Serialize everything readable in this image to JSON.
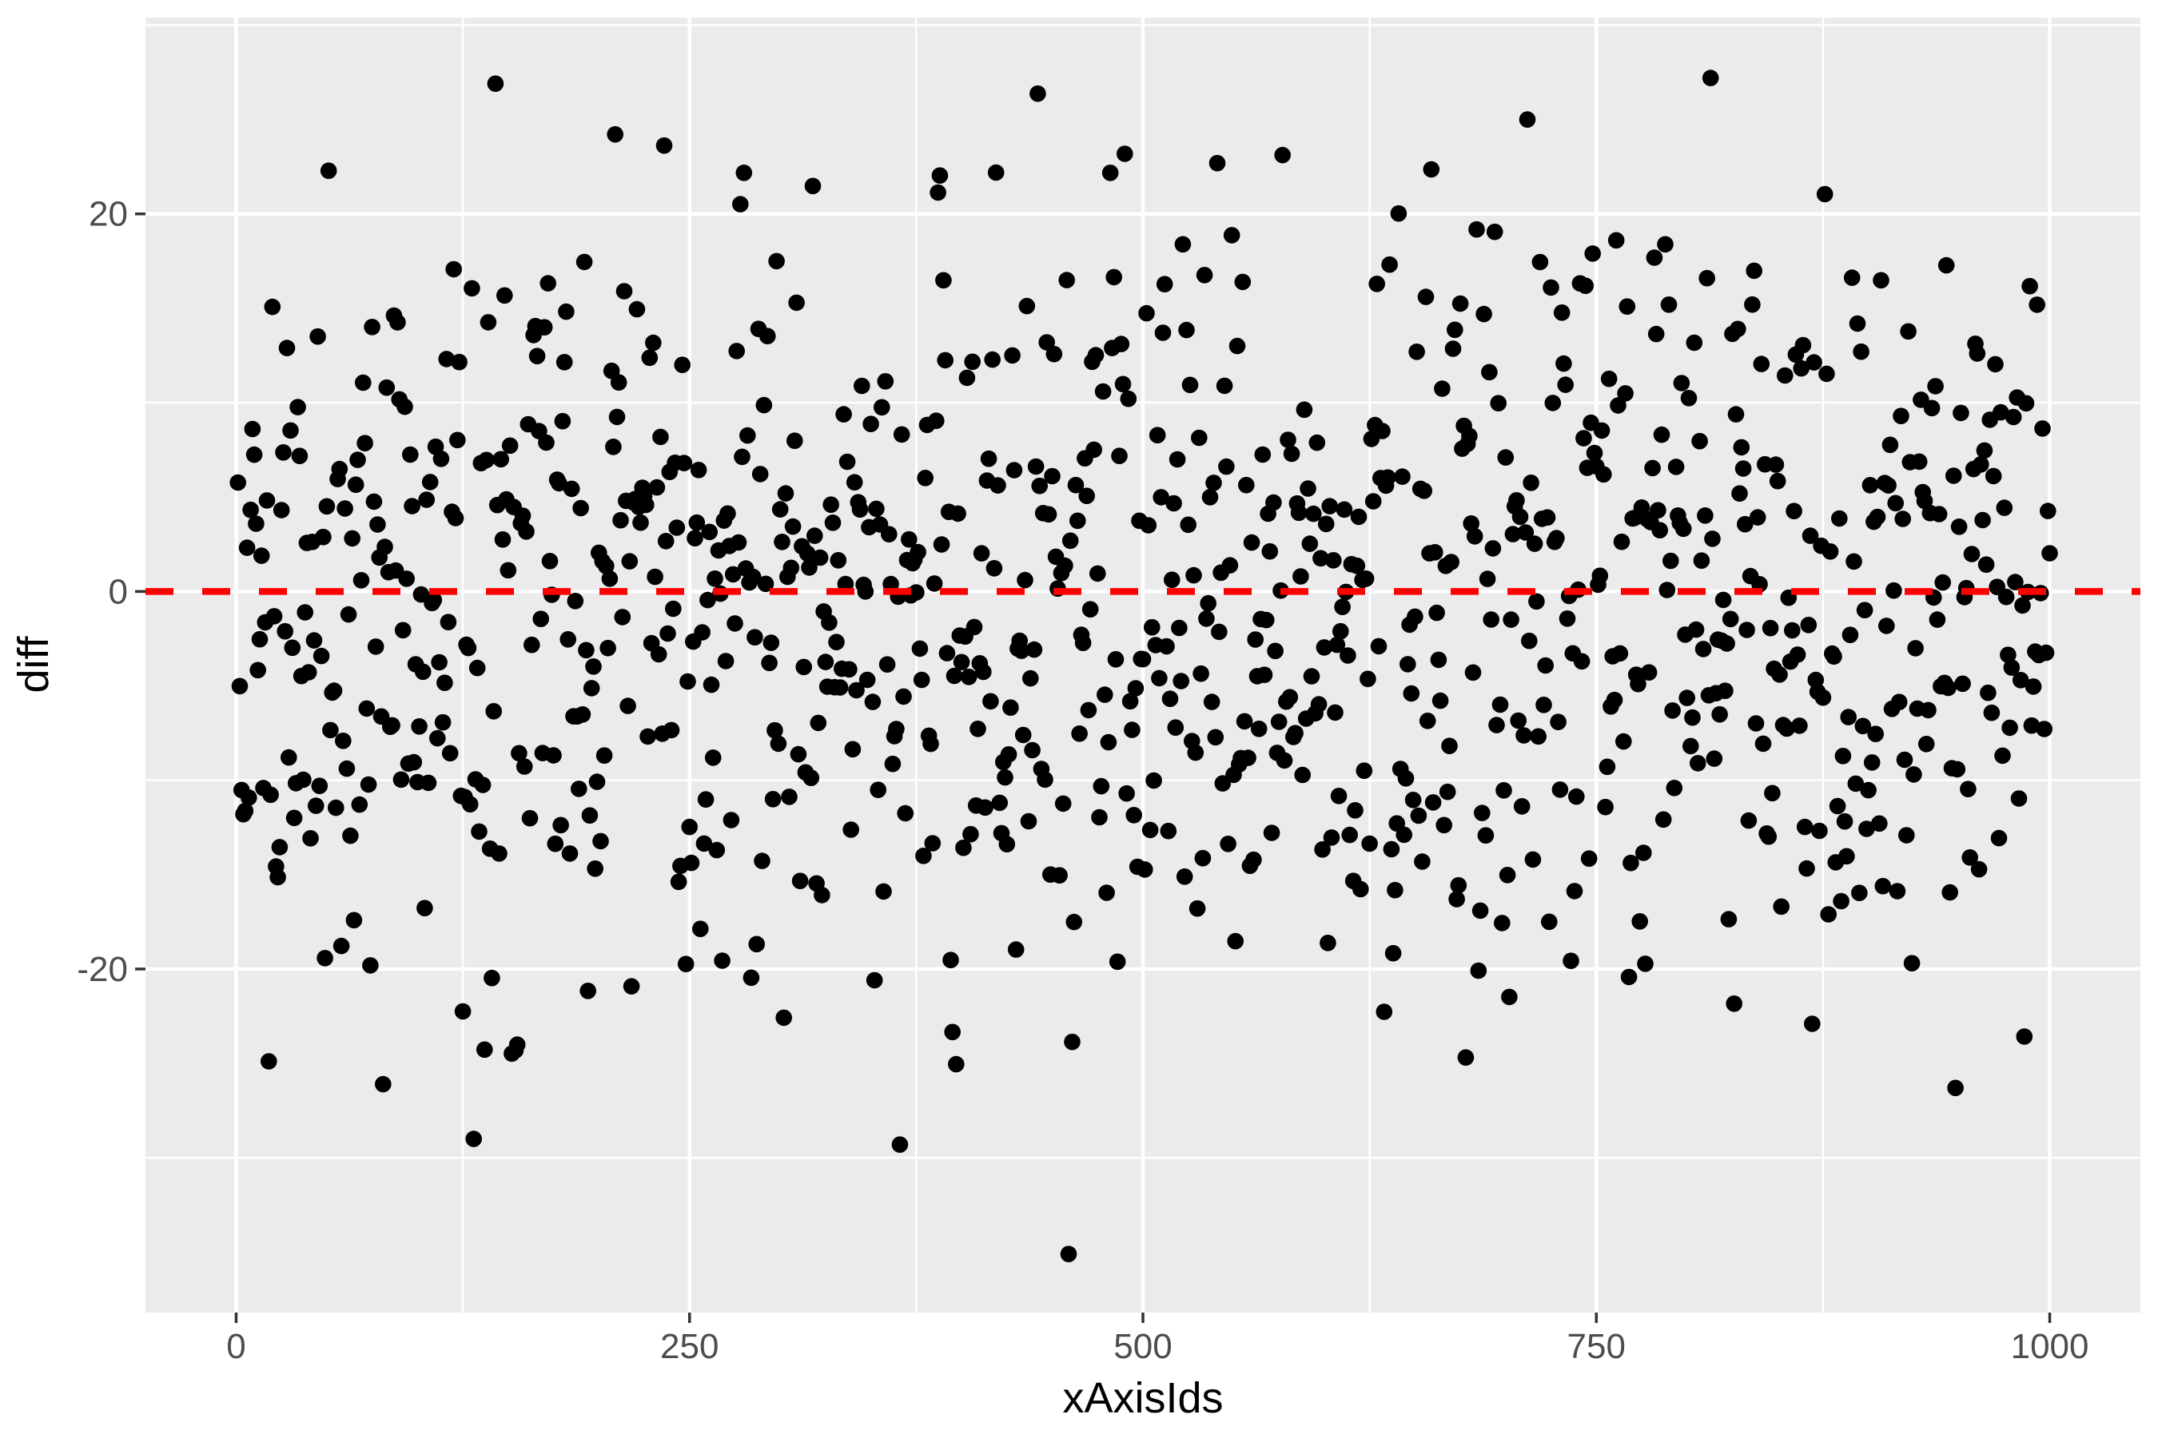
{
  "chart_data": {
    "type": "scatter",
    "title": "",
    "xlabel": "xAxisIds",
    "ylabel": "diff",
    "x_ticks": [
      0,
      250,
      500,
      750,
      1000
    ],
    "x_tick_labels": [
      "0",
      "250",
      "500",
      "750",
      "1000"
    ],
    "x_minor_gridlines": [
      125,
      375,
      625,
      875
    ],
    "y_ticks": [
      -20,
      0,
      20
    ],
    "y_tick_labels": [
      "-20",
      "0",
      "20"
    ],
    "y_minor_gridlines": [
      -30,
      -10,
      10,
      30
    ],
    "xlim": [
      -50,
      1050
    ],
    "ylim": [
      -38.2,
      30.4
    ],
    "grid": "white major and minor gridlines on grey panel",
    "legend_position": "none",
    "colors": {
      "outer_background": "#FFFFFF",
      "panel_background": "#EBEBEB",
      "gridline": "#FFFFFF",
      "point": "#000000",
      "reference_line": "#FF0000",
      "tick_mark": "#333333",
      "tick_label": "#4D4D4D",
      "axis_title": "#000000"
    },
    "reference_line": {
      "y": 0,
      "color": "#FF0000",
      "style": "dashed"
    },
    "points": {
      "description": "approx. 1000 solid black points, one per id x=1..1000, diff scattered around 0",
      "n": 1000,
      "seed": 1337,
      "x_start": 1,
      "x_end": 1000,
      "y_mean": -1,
      "y_sd": 10,
      "y_reject_abs_z": 2.8,
      "outliers": [
        {
          "x": 459,
          "y": -35.1
        },
        {
          "x": 143,
          "y": 26.9
        },
        {
          "x": 813,
          "y": 27.2
        },
        {
          "x": 131,
          "y": -29.0
        },
        {
          "x": 366,
          "y": -29.3
        },
        {
          "x": 81,
          "y": -26.1
        },
        {
          "x": 948,
          "y": -26.3
        }
      ]
    }
  }
}
